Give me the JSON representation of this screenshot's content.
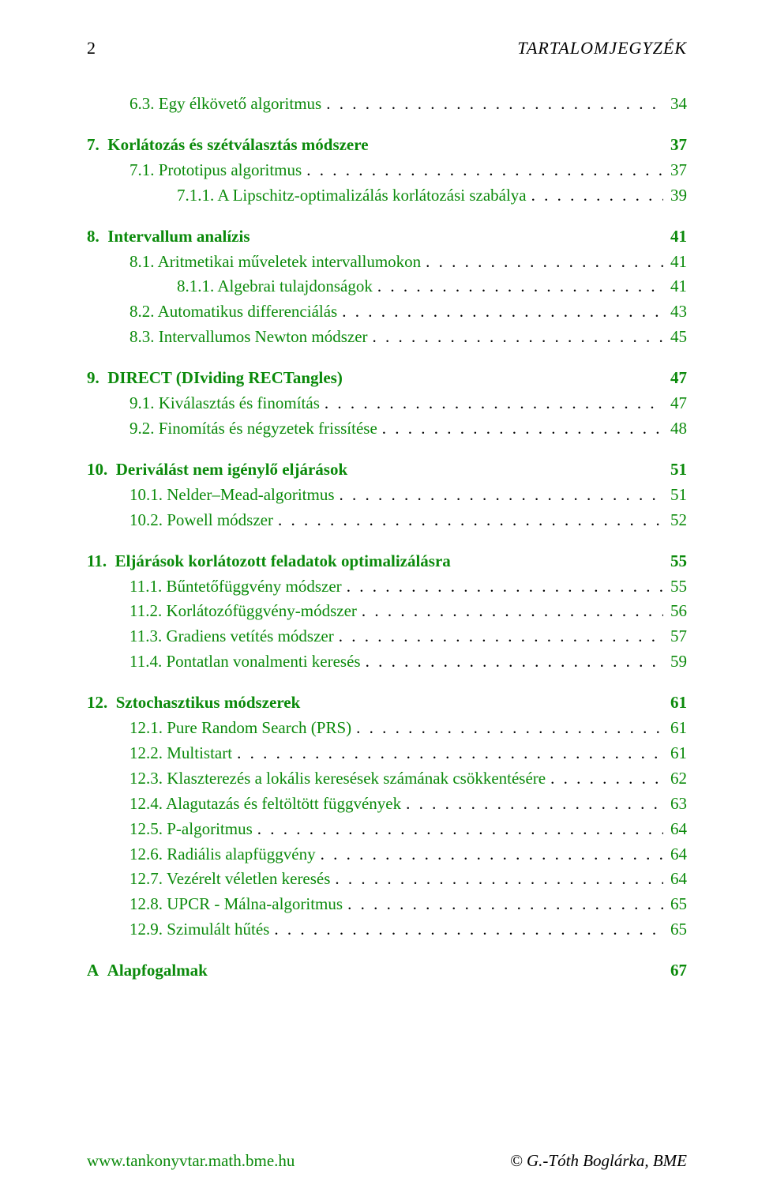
{
  "colors": {
    "link": "#0b8a0b",
    "text": "#000000",
    "background": "#ffffff"
  },
  "font": {
    "family": "Palatino",
    "base_size_pt": 16,
    "line_height": 1.52
  },
  "header": {
    "page_number": "2",
    "running_title": "TARTALOMJEGYZÉK"
  },
  "footer": {
    "left": "www.tankonyvtar.math.bme.hu",
    "right": "© G.-Tóth Boglárka, BME"
  },
  "toc": [
    {
      "type": "group",
      "items": [
        {
          "indent": 1,
          "link": true,
          "label_num": "6.3.",
          "label_text": "Egy élkövető algoritmus",
          "page": "34"
        }
      ]
    },
    {
      "type": "group",
      "items": [
        {
          "indent": 0,
          "bold": true,
          "link": true,
          "label_num": "7.",
          "label_text": "Korlátozás és szétválasztás módszere",
          "page": "37",
          "no_dots": true
        },
        {
          "indent": 1,
          "link": true,
          "label_num": "7.1.",
          "label_text": "Prototipus algoritmus",
          "page": "37"
        },
        {
          "indent": 2,
          "link": true,
          "label_num": "7.1.1.",
          "label_text": "A Lipschitz-optimalizálás korlátozási szabálya",
          "page": "39"
        }
      ]
    },
    {
      "type": "group",
      "items": [
        {
          "indent": 0,
          "bold": true,
          "link": true,
          "label_num": "8.",
          "label_text": "Intervallum analízis",
          "page": "41",
          "no_dots": true
        },
        {
          "indent": 1,
          "link": true,
          "label_num": "8.1.",
          "label_text": "Aritmetikai műveletek intervallumokon",
          "page": "41"
        },
        {
          "indent": 2,
          "link": true,
          "label_num": "8.1.1.",
          "label_text": "Algebrai tulajdonságok",
          "page": "41"
        },
        {
          "indent": 1,
          "link": true,
          "label_num": "8.2.",
          "label_text": "Automatikus differenciálás",
          "page": "43"
        },
        {
          "indent": 1,
          "link": true,
          "label_num": "8.3.",
          "label_text": "Intervallumos Newton módszer",
          "page": "45"
        }
      ]
    },
    {
      "type": "group",
      "items": [
        {
          "indent": 0,
          "bold": true,
          "link": true,
          "label_num": "9.",
          "label_text": "DIRECT (DIviding RECTangles)",
          "page": "47",
          "no_dots": true
        },
        {
          "indent": 1,
          "link": true,
          "label_num": "9.1.",
          "label_text": "Kiválasztás és finomítás",
          "page": "47"
        },
        {
          "indent": 1,
          "link": true,
          "label_num": "9.2.",
          "label_text": "Finomítás és négyzetek frissítése",
          "page": "48"
        }
      ]
    },
    {
      "type": "group",
      "items": [
        {
          "indent": 0,
          "bold": true,
          "link": true,
          "label_num": "10.",
          "label_text": "Deriválást nem igénylő eljárások",
          "page": "51",
          "no_dots": true
        },
        {
          "indent": 1,
          "link": true,
          "label_num": "10.1.",
          "label_text": "Nelder–Mead-algoritmus",
          "page": "51"
        },
        {
          "indent": 1,
          "link": true,
          "label_num": "10.2.",
          "label_text": "Powell módszer",
          "page": "52"
        }
      ]
    },
    {
      "type": "group",
      "items": [
        {
          "indent": 0,
          "bold": true,
          "link": true,
          "label_num": "11.",
          "label_text": "Eljárások korlátozott feladatok optimalizálásra",
          "page": "55",
          "no_dots": true
        },
        {
          "indent": 1,
          "link": true,
          "label_num": "11.1.",
          "label_text": "Bűntetőfüggvény módszer",
          "page": "55"
        },
        {
          "indent": 1,
          "link": true,
          "label_num": "11.2.",
          "label_text": "Korlátozófüggvény-módszer",
          "page": "56"
        },
        {
          "indent": 1,
          "link": true,
          "label_num": "11.3.",
          "label_text": "Gradiens vetítés módszer",
          "page": "57"
        },
        {
          "indent": 1,
          "link": true,
          "label_num": "11.4.",
          "label_text": "Pontatlan vonalmenti keresés",
          "page": "59"
        }
      ]
    },
    {
      "type": "group",
      "items": [
        {
          "indent": 0,
          "bold": true,
          "link": true,
          "label_num": "12.",
          "label_text": "Sztochasztikus módszerek",
          "page": "61",
          "no_dots": true
        },
        {
          "indent": 1,
          "link": true,
          "label_num": "12.1.",
          "label_text": "Pure Random Search (PRS)",
          "page": "61"
        },
        {
          "indent": 1,
          "link": true,
          "label_num": "12.2.",
          "label_text": "Multistart",
          "page": "61"
        },
        {
          "indent": 1,
          "link": true,
          "label_num": "12.3.",
          "label_text": "Klaszterezés a lokális keresések számának csökkentésére",
          "page": "62"
        },
        {
          "indent": 1,
          "link": true,
          "label_num": "12.4.",
          "label_text": "Alagutazás és feltöltött függvények",
          "page": "63"
        },
        {
          "indent": 1,
          "link": true,
          "label_num": "12.5.",
          "label_text": "P-algoritmus",
          "page": "64"
        },
        {
          "indent": 1,
          "link": true,
          "label_num": "12.6.",
          "label_text": "Radiális alapfüggvény",
          "page": "64"
        },
        {
          "indent": 1,
          "link": true,
          "label_num": "12.7.",
          "label_text": "Vezérelt véletlen keresés",
          "page": "64"
        },
        {
          "indent": 1,
          "link": true,
          "label_num": "12.8.",
          "label_text": "UPCR - Málna-algoritmus",
          "page": "65"
        },
        {
          "indent": 1,
          "link": true,
          "label_num": "12.9.",
          "label_text": "Szimulált hűtés",
          "page": "65"
        }
      ]
    },
    {
      "type": "group",
      "items": [
        {
          "indent": 0,
          "bold": true,
          "link": true,
          "label_num": "A",
          "label_text": "Alapfogalmak",
          "page": "67",
          "no_dots": true
        }
      ]
    }
  ]
}
